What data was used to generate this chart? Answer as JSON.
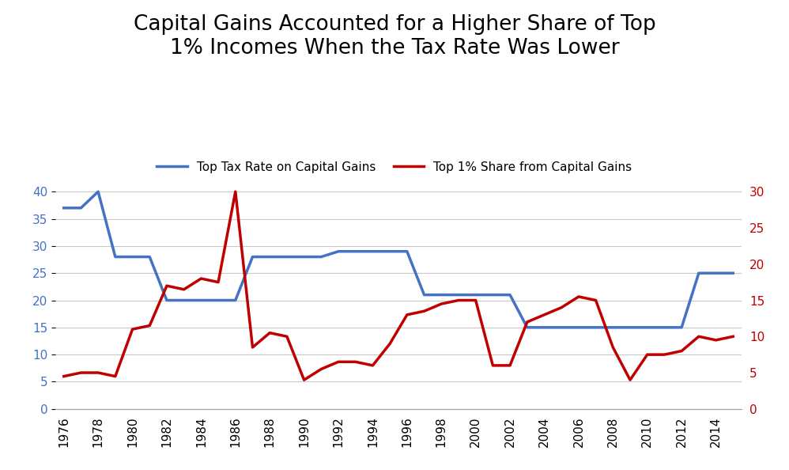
{
  "title": "Capital Gains Accounted for a Higher Share of Top\n1% Incomes When the Tax Rate Was Lower",
  "title_fontsize": 19,
  "blue_label": "Top Tax Rate on Capital Gains",
  "red_label": "Top 1% Share from Capital Gains",
  "blue_color": "#4472C4",
  "red_color": "#C00000",
  "background_color": "#FFFFFF",
  "years": [
    1976,
    1977,
    1978,
    1979,
    1980,
    1981,
    1982,
    1983,
    1984,
    1985,
    1986,
    1987,
    1988,
    1989,
    1990,
    1991,
    1992,
    1993,
    1994,
    1995,
    1996,
    1997,
    1998,
    1999,
    2000,
    2001,
    2002,
    2003,
    2004,
    2005,
    2006,
    2007,
    2008,
    2009,
    2010,
    2011,
    2012,
    2013,
    2014,
    2015
  ],
  "blue_data": [
    37,
    37,
    40,
    28,
    28,
    28,
    20,
    20,
    20,
    20,
    20,
    28,
    28,
    28,
    28,
    28,
    29,
    29,
    29,
    29,
    29,
    21,
    21,
    21,
    21,
    21,
    21,
    15,
    15,
    15,
    15,
    15,
    15,
    15,
    15,
    15,
    15,
    25,
    25,
    25
  ],
  "red_data": [
    4.5,
    5.0,
    5.0,
    4.5,
    11.0,
    11.5,
    17.0,
    16.5,
    18.0,
    17.5,
    30.0,
    8.5,
    10.5,
    10.0,
    4.0,
    5.5,
    6.5,
    6.5,
    6.0,
    9.0,
    13.0,
    13.5,
    14.5,
    15.0,
    15.0,
    6.0,
    6.0,
    12.0,
    13.0,
    14.0,
    15.5,
    15.0,
    8.5,
    4.0,
    7.5,
    7.5,
    8.0,
    10.0,
    9.5,
    10.0
  ],
  "left_ylim": [
    0,
    45
  ],
  "left_yticks": [
    0,
    5,
    10,
    15,
    20,
    25,
    30,
    35,
    40
  ],
  "right_ylim": [
    0,
    33.75
  ],
  "right_yticks": [
    0,
    5,
    10,
    15,
    20,
    25,
    30
  ],
  "line_width": 2.5,
  "grid_color": "#C8C8C8",
  "tick_label_fontsize": 11,
  "legend_fontsize": 11
}
